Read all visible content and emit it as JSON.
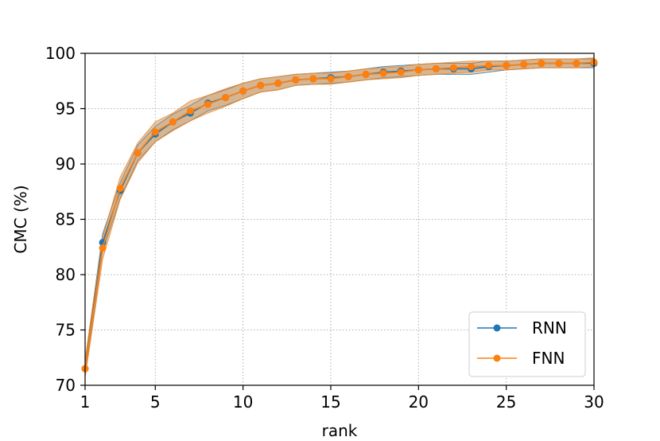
{
  "chart_data": {
    "type": "line",
    "xlabel": "rank",
    "ylabel": "CMC (%)",
    "xlim": [
      1,
      30
    ],
    "ylim": [
      70,
      100
    ],
    "x_ticks": [
      1,
      5,
      10,
      15,
      20,
      25,
      30
    ],
    "y_ticks": [
      70,
      75,
      80,
      85,
      90,
      95,
      100
    ],
    "grid": true,
    "legend_position": "lower-right",
    "series": [
      {
        "name": "RNN",
        "color": "#1f77b4",
        "x": [
          1,
          2,
          3,
          4,
          5,
          6,
          7,
          8,
          9,
          10,
          11,
          12,
          13,
          14,
          15,
          16,
          17,
          18,
          19,
          20,
          21,
          22,
          23,
          24,
          25,
          26,
          27,
          28,
          29,
          30
        ],
        "values": [
          71.5,
          82.9,
          87.6,
          91.0,
          92.7,
          93.8,
          94.6,
          95.5,
          96.0,
          96.6,
          97.1,
          97.3,
          97.6,
          97.7,
          97.8,
          97.9,
          98.1,
          98.3,
          98.4,
          98.5,
          98.6,
          98.6,
          98.6,
          98.8,
          98.9,
          99.0,
          99.1,
          99.1,
          99.1,
          99.1
        ],
        "band_lower": [
          70.9,
          82.1,
          86.9,
          90.3,
          92.0,
          93.1,
          93.9,
          94.8,
          95.3,
          95.9,
          96.5,
          96.7,
          97.1,
          97.2,
          97.3,
          97.4,
          97.6,
          97.8,
          97.9,
          98.0,
          98.1,
          98.1,
          98.1,
          98.3,
          98.5,
          98.6,
          98.7,
          98.7,
          98.7,
          98.7
        ],
        "band_upper": [
          72.1,
          83.7,
          88.3,
          91.7,
          93.4,
          94.5,
          95.3,
          96.2,
          96.7,
          97.3,
          97.7,
          97.9,
          98.1,
          98.2,
          98.3,
          98.4,
          98.6,
          98.8,
          98.9,
          99.0,
          99.1,
          99.1,
          99.1,
          99.3,
          99.3,
          99.4,
          99.5,
          99.5,
          99.5,
          99.5
        ]
      },
      {
        "name": "FNN",
        "color": "#ff7f0e",
        "x": [
          1,
          2,
          3,
          4,
          5,
          6,
          7,
          8,
          9,
          10,
          11,
          12,
          13,
          14,
          15,
          16,
          17,
          18,
          19,
          20,
          21,
          22,
          23,
          24,
          25,
          26,
          27,
          28,
          29,
          30
        ],
        "values": [
          71.5,
          82.4,
          87.8,
          91.0,
          92.9,
          93.8,
          94.8,
          95.4,
          96.0,
          96.6,
          97.1,
          97.3,
          97.6,
          97.7,
          97.7,
          97.9,
          98.1,
          98.2,
          98.3,
          98.5,
          98.6,
          98.7,
          98.8,
          98.9,
          98.9,
          99.0,
          99.1,
          99.1,
          99.1,
          99.2
        ],
        "band_lower": [
          70.7,
          81.4,
          86.8,
          90.1,
          92.0,
          93.0,
          93.9,
          94.6,
          95.2,
          95.9,
          96.5,
          96.7,
          97.1,
          97.2,
          97.2,
          97.4,
          97.6,
          97.7,
          97.8,
          98.0,
          98.1,
          98.2,
          98.3,
          98.5,
          98.5,
          98.6,
          98.7,
          98.7,
          98.7,
          98.8
        ],
        "band_upper": [
          72.3,
          83.4,
          88.8,
          91.9,
          93.8,
          94.6,
          95.7,
          96.2,
          96.8,
          97.3,
          97.7,
          97.9,
          98.1,
          98.2,
          98.2,
          98.4,
          98.6,
          98.7,
          98.8,
          99.0,
          99.1,
          99.2,
          99.3,
          99.3,
          99.3,
          99.4,
          99.5,
          99.5,
          99.5,
          99.6
        ]
      }
    ],
    "band_color": "#c28b52"
  }
}
